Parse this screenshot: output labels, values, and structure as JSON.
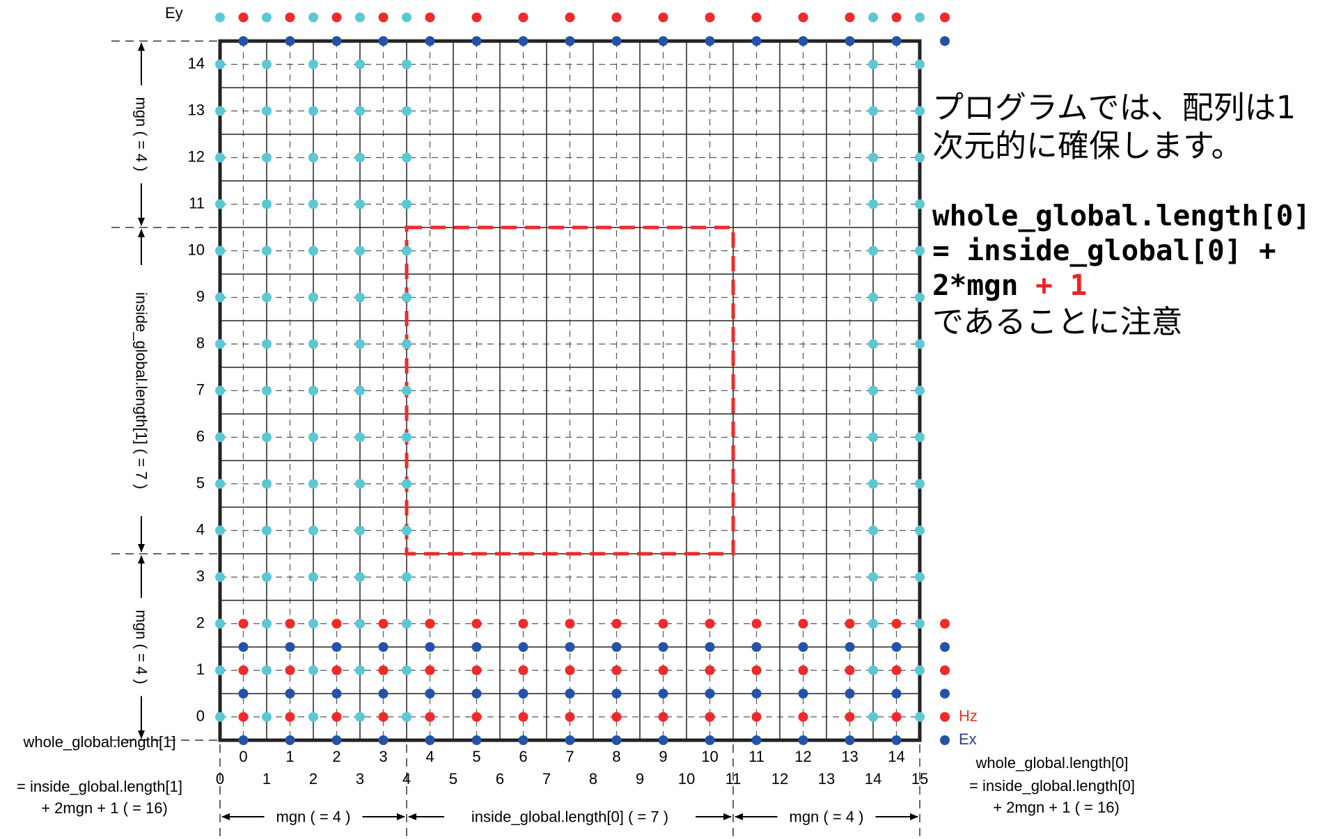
{
  "labels": {
    "ey": "Ey",
    "hz": "Hz",
    "ex": "Ex",
    "mgn_v_top": "mgn ( = 4 )",
    "inside_v": "inside_global.length[1] ( = 7 )",
    "mgn_v_bottom": "mgn ( = 4 )",
    "mgn_h_left": "mgn ( = 4 )",
    "inside_h": "inside_global.length[0] ( = 7 )",
    "mgn_h_right": "mgn ( = 4 )",
    "left_formula": [
      "whole_global.length[1]",
      "= inside_global.length[1]",
      "+ 2mgn + 1 ( = 16)"
    ],
    "right_formula": [
      "whole_global.length[0]",
      "= inside_global.length[0]",
      "+ 2mgn + 1 ( = 16)"
    ]
  },
  "cell_index_labels": [
    "0",
    "1",
    "2",
    "3",
    "4",
    "5",
    "6",
    "7",
    "8",
    "9",
    "10",
    "11",
    "12",
    "13",
    "14"
  ],
  "node_index_labels": [
    "0",
    "1",
    "2",
    "3",
    "4",
    "5",
    "6",
    "7",
    "8",
    "9",
    "10",
    "11",
    "12",
    "13",
    "14",
    "15"
  ],
  "note": {
    "line1": "プログラムでは、配列は1",
    "line2": "次元的に確保します。",
    "code1": "whole_global.length[0]",
    "code2": "= inside_global[0] +",
    "code3_main": "2*mgn",
    "code3_red": " + 1",
    "line3": "であることに注意"
  },
  "colors": {
    "ey": "#5bc8d3",
    "hz": "#ee2a2a",
    "ex": "#2452a8",
    "inside_box": "#ee2a2a",
    "ex_label": "#2c3c9a"
  },
  "grid": {
    "margin_cells": 4,
    "inside_cells": 7,
    "total_cells": 15
  }
}
